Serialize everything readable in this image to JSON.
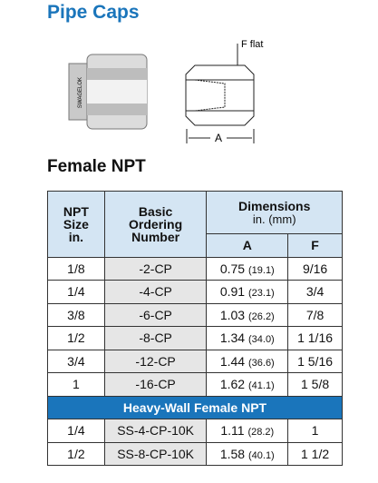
{
  "header": {
    "title": "Pipe Caps"
  },
  "figure": {
    "label_f": "F flat",
    "label_a": "A",
    "brand": "SWAGELOK"
  },
  "section": {
    "title": "Female NPT"
  },
  "table": {
    "head": {
      "size": [
        "NPT",
        "Size",
        "in."
      ],
      "number": [
        "Basic",
        "Ordering",
        "Number"
      ],
      "dimensions": "Dimensions",
      "units": "in. (mm)",
      "a": "A",
      "f": "F"
    },
    "rows": [
      [
        "1/8",
        "-2-CP",
        "0.75",
        "(19.1)",
        "9/16"
      ],
      [
        "1/4",
        "-4-CP",
        "0.91",
        "(23.1)",
        "3/4"
      ],
      [
        "3/8",
        "-6-CP",
        "1.03",
        "(26.2)",
        "7/8"
      ],
      [
        "1/2",
        "-8-CP",
        "1.34",
        "(34.0)",
        "1 1/16"
      ],
      [
        "3/4",
        "-12-CP",
        "1.44",
        "(36.6)",
        "1 5/16"
      ],
      [
        "1",
        "-16-CP",
        "1.62",
        "(41.1)",
        "1 5/8"
      ]
    ],
    "heavy_title": "Heavy-Wall Female NPT",
    "heavy_rows": [
      [
        "1/4",
        "SS-4-CP-10K",
        "1.11",
        "(28.2)",
        "1"
      ],
      [
        "1/2",
        "SS-8-CP-10K",
        "1.58",
        "(40.1)",
        "1 1/2"
      ]
    ]
  }
}
